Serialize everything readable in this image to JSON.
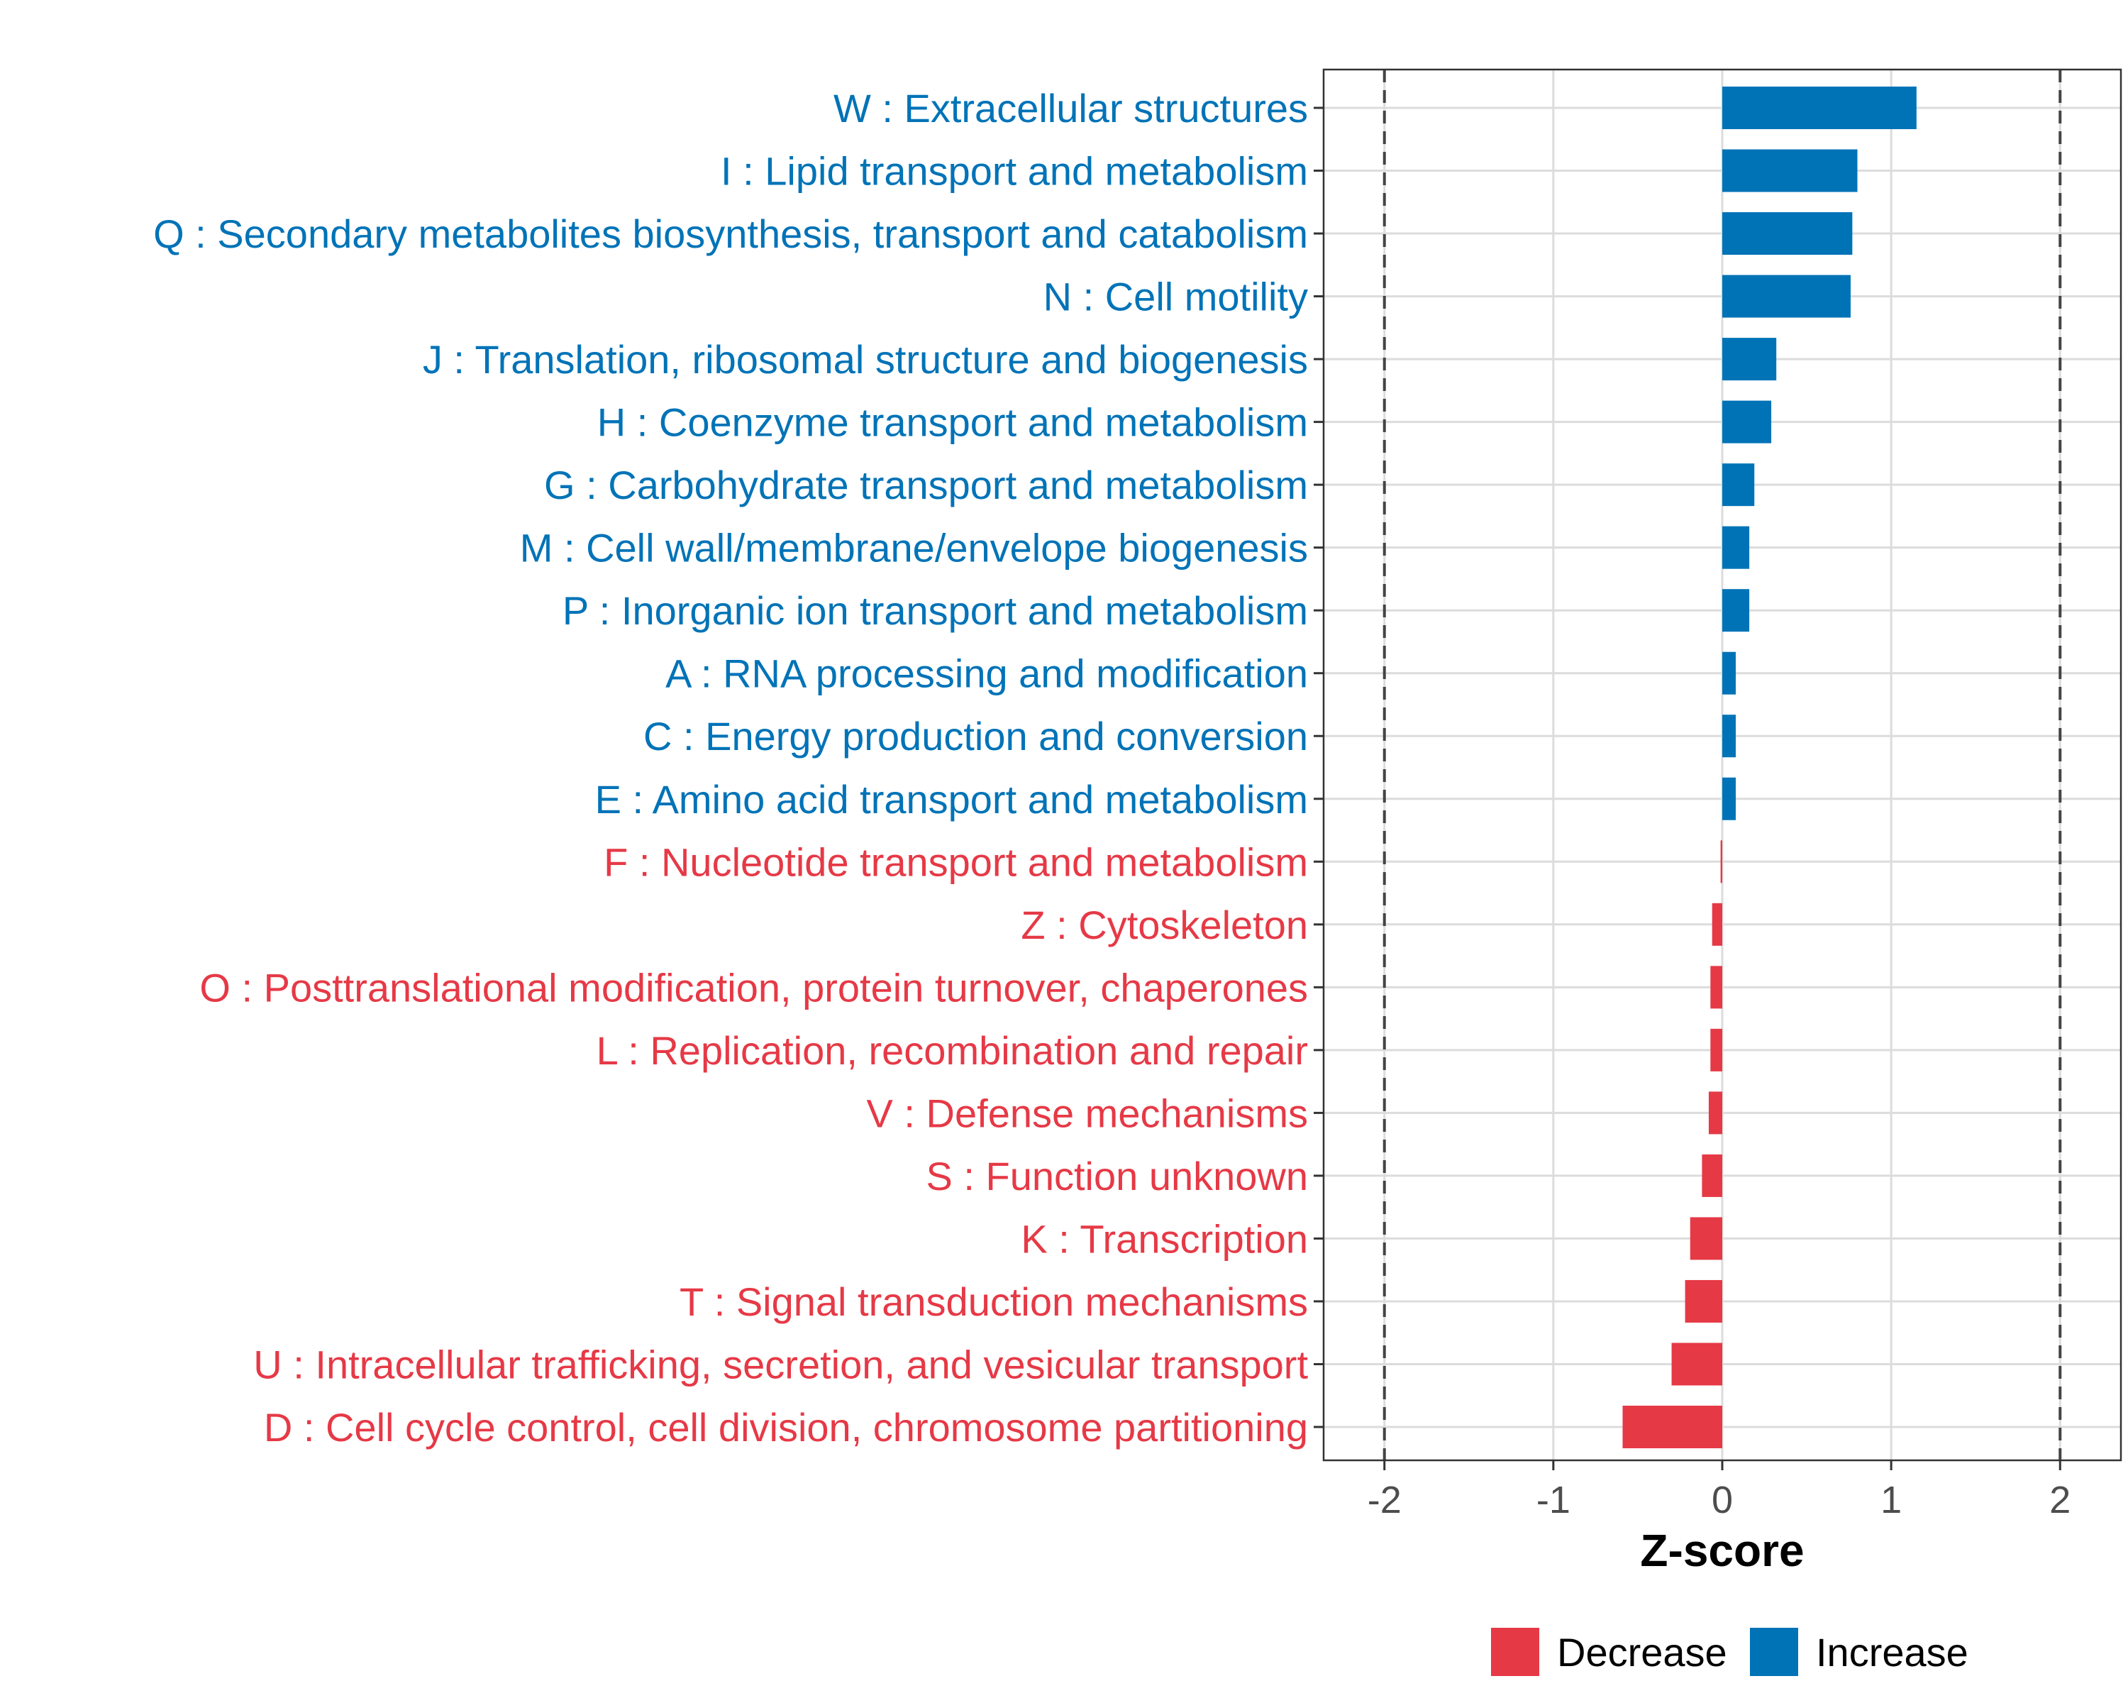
{
  "chart_data": {
    "type": "bar",
    "orientation": "horizontal",
    "title": "",
    "xlabel": "Z-score",
    "ylabel": "",
    "xlim": [
      -2.36,
      2.36
    ],
    "xticks": [
      "-2",
      "-1",
      "0",
      "1",
      "2"
    ],
    "xtick_values": [
      -2,
      -1,
      0,
      1,
      2
    ],
    "reference_lines": [
      -2,
      2
    ],
    "grid": true,
    "colors": {
      "Increase": "#0073b7",
      "Decrease": "#e63946"
    },
    "legend": {
      "position": "bottom",
      "items": [
        {
          "label": "Decrease",
          "key": "Decrease"
        },
        {
          "label": "Increase",
          "key": "Increase"
        }
      ]
    },
    "categories": [
      {
        "label": "W : Extracellular structures",
        "value": 1.15,
        "group": "Increase"
      },
      {
        "label": "I : Lipid transport and metabolism",
        "value": 0.8,
        "group": "Increase"
      },
      {
        "label": "Q : Secondary metabolites biosynthesis, transport and catabolism",
        "value": 0.77,
        "group": "Increase"
      },
      {
        "label": "N : Cell motility",
        "value": 0.76,
        "group": "Increase"
      },
      {
        "label": "J : Translation, ribosomal structure and biogenesis",
        "value": 0.32,
        "group": "Increase"
      },
      {
        "label": "H : Coenzyme transport and metabolism",
        "value": 0.29,
        "group": "Increase"
      },
      {
        "label": "G : Carbohydrate transport and metabolism",
        "value": 0.19,
        "group": "Increase"
      },
      {
        "label": "M : Cell wall/membrane/envelope biogenesis",
        "value": 0.16,
        "group": "Increase"
      },
      {
        "label": "P : Inorganic ion transport and metabolism",
        "value": 0.16,
        "group": "Increase"
      },
      {
        "label": "A : RNA processing and modification",
        "value": 0.08,
        "group": "Increase"
      },
      {
        "label": "C : Energy production and conversion",
        "value": 0.08,
        "group": "Increase"
      },
      {
        "label": "E : Amino acid transport and metabolism",
        "value": 0.08,
        "group": "Increase"
      },
      {
        "label": "F : Nucleotide transport and metabolism",
        "value": -0.01,
        "group": "Decrease"
      },
      {
        "label": "Z : Cytoskeleton",
        "value": -0.06,
        "group": "Decrease"
      },
      {
        "label": "O : Posttranslational modification, protein turnover, chaperones",
        "value": -0.07,
        "group": "Decrease"
      },
      {
        "label": "L : Replication, recombination and repair",
        "value": -0.07,
        "group": "Decrease"
      },
      {
        "label": "V : Defense mechanisms",
        "value": -0.08,
        "group": "Decrease"
      },
      {
        "label": "S : Function unknown",
        "value": -0.12,
        "group": "Decrease"
      },
      {
        "label": "K : Transcription",
        "value": -0.19,
        "group": "Decrease"
      },
      {
        "label": "T : Signal transduction mechanisms",
        "value": -0.22,
        "group": "Decrease"
      },
      {
        "label": "U : Intracellular trafficking, secretion, and vesicular transport",
        "value": -0.3,
        "group": "Decrease"
      },
      {
        "label": "D : Cell cycle control, cell division, chromosome partitioning",
        "value": -0.59,
        "group": "Decrease"
      }
    ]
  }
}
